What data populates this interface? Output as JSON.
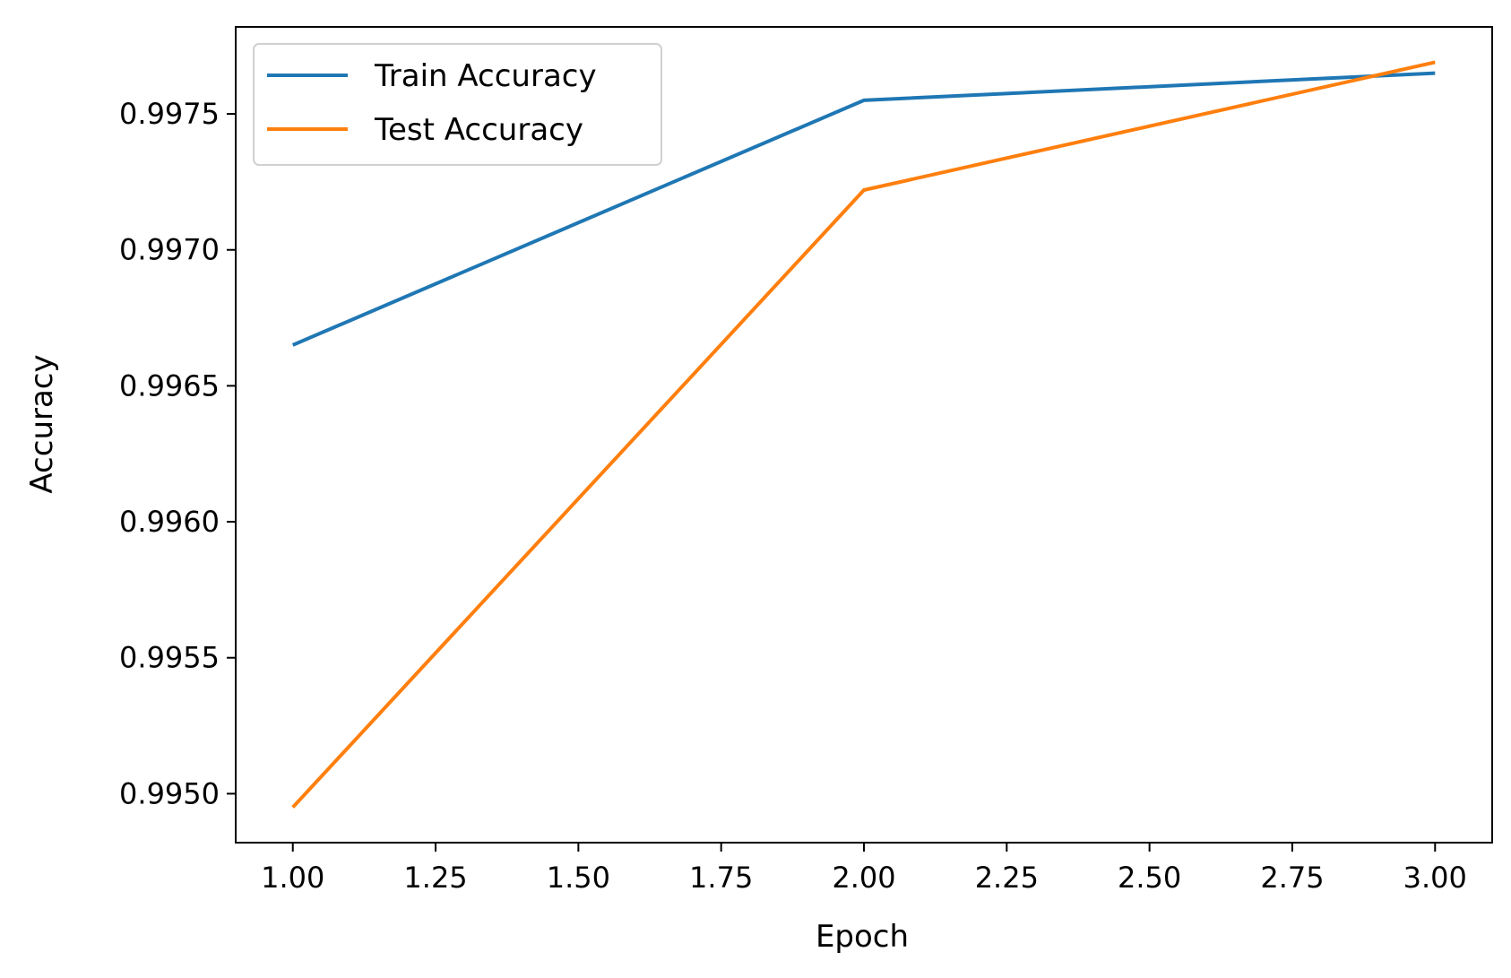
{
  "chart_data": {
    "type": "line",
    "xlabel": "Epoch",
    "ylabel": "Accuracy",
    "xlim": [
      0.9,
      3.1
    ],
    "ylim": [
      0.99482,
      0.99782
    ],
    "xticks": [
      1.0,
      1.25,
      1.5,
      1.75,
      2.0,
      2.25,
      2.5,
      2.75,
      3.0
    ],
    "xtick_labels": [
      "1.00",
      "1.25",
      "1.50",
      "1.75",
      "2.00",
      "2.25",
      "2.50",
      "2.75",
      "3.00"
    ],
    "yticks": [
      0.995,
      0.9955,
      0.996,
      0.9965,
      0.997,
      0.9975
    ],
    "ytick_labels": [
      "0.9950",
      "0.9955",
      "0.9960",
      "0.9965",
      "0.9970",
      "0.9975"
    ],
    "grid": false,
    "legend_position": "upper-left",
    "x": [
      1,
      2,
      3
    ],
    "series": [
      {
        "name": "Train Accuracy",
        "color": "#1f77b4",
        "values": [
          0.99665,
          0.99755,
          0.99765
        ]
      },
      {
        "name": "Test Accuracy",
        "color": "#ff7f0e",
        "values": [
          0.99495,
          0.99722,
          0.99769
        ]
      }
    ]
  }
}
